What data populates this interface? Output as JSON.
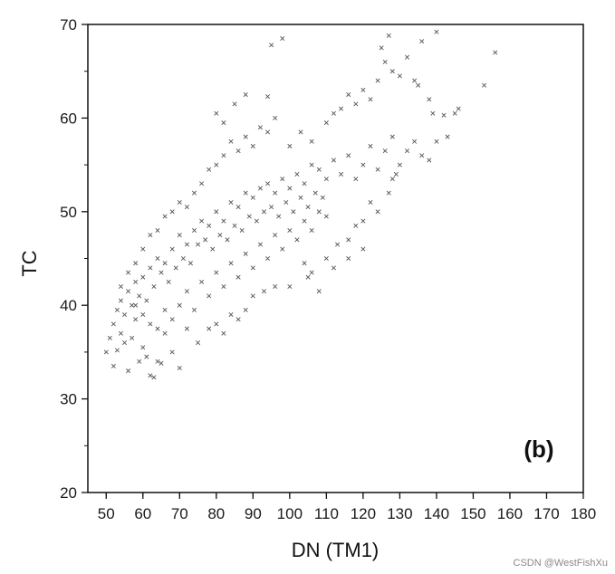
{
  "chart_data": {
    "type": "scatter",
    "xlabel": "DN (TM1)",
    "ylabel": "TC",
    "panel_label": "(b)",
    "xlim": [
      45,
      180
    ],
    "ylim": [
      20,
      70
    ],
    "xticks": [
      50,
      60,
      70,
      80,
      90,
      100,
      110,
      120,
      130,
      140,
      150,
      160,
      170,
      180
    ],
    "yticks": [
      20,
      30,
      40,
      50,
      60,
      70
    ],
    "marker": "x",
    "marker_color": "#555555",
    "grid": false,
    "points": [
      [
        50,
        35.0
      ],
      [
        51,
        36.5
      ],
      [
        52,
        33.5
      ],
      [
        53,
        35.2
      ],
      [
        54,
        37.0
      ],
      [
        55,
        36.0
      ],
      [
        56,
        33.0
      ],
      [
        57,
        36.5
      ],
      [
        58,
        38.5
      ],
      [
        59,
        34.0
      ],
      [
        60,
        35.5
      ],
      [
        61,
        34.5
      ],
      [
        62,
        32.5
      ],
      [
        63,
        32.3
      ],
      [
        64,
        34.0
      ],
      [
        65,
        33.8
      ],
      [
        66,
        37.0
      ],
      [
        68,
        35.0
      ],
      [
        70,
        33.3
      ],
      [
        72,
        37.5
      ],
      [
        75,
        36.0
      ],
      [
        78,
        37.5
      ],
      [
        80,
        38.0
      ],
      [
        82,
        37.0
      ],
      [
        84,
        39.0
      ],
      [
        86,
        38.5
      ],
      [
        88,
        39.5
      ],
      [
        90,
        41.0
      ],
      [
        93,
        41.5
      ],
      [
        96,
        42.0
      ],
      [
        100,
        42.0
      ],
      [
        105,
        43.0
      ],
      [
        108,
        41.5
      ],
      [
        112,
        44.0
      ],
      [
        116,
        45.0
      ],
      [
        120,
        46.0
      ],
      [
        52,
        38.0
      ],
      [
        53,
        39.5
      ],
      [
        54,
        40.5
      ],
      [
        55,
        39.0
      ],
      [
        56,
        41.5
      ],
      [
        57,
        40.0
      ],
      [
        58,
        42.5
      ],
      [
        59,
        41.0
      ],
      [
        60,
        43.0
      ],
      [
        61,
        40.5
      ],
      [
        62,
        44.0
      ],
      [
        63,
        42.0
      ],
      [
        64,
        45.0
      ],
      [
        65,
        43.5
      ],
      [
        66,
        44.5
      ],
      [
        67,
        42.5
      ],
      [
        68,
        46.0
      ],
      [
        69,
        44.0
      ],
      [
        70,
        47.5
      ],
      [
        71,
        45.0
      ],
      [
        72,
        46.5
      ],
      [
        73,
        44.5
      ],
      [
        74,
        48.0
      ],
      [
        75,
        46.5
      ],
      [
        76,
        49.0
      ],
      [
        77,
        47.0
      ],
      [
        78,
        48.5
      ],
      [
        79,
        46.0
      ],
      [
        80,
        50.0
      ],
      [
        81,
        47.5
      ],
      [
        82,
        49.0
      ],
      [
        83,
        47.0
      ],
      [
        84,
        51.0
      ],
      [
        85,
        48.5
      ],
      [
        86,
        50.5
      ],
      [
        87,
        48.0
      ],
      [
        88,
        52.0
      ],
      [
        89,
        49.5
      ],
      [
        90,
        51.5
      ],
      [
        91,
        49.0
      ],
      [
        92,
        52.5
      ],
      [
        93,
        50.0
      ],
      [
        94,
        53.0
      ],
      [
        95,
        50.5
      ],
      [
        96,
        52.0
      ],
      [
        97,
        49.5
      ],
      [
        98,
        53.5
      ],
      [
        99,
        51.0
      ],
      [
        100,
        52.5
      ],
      [
        101,
        50.0
      ],
      [
        102,
        54.0
      ],
      [
        103,
        51.5
      ],
      [
        104,
        53.0
      ],
      [
        105,
        50.5
      ],
      [
        106,
        55.0
      ],
      [
        107,
        52.0
      ],
      [
        108,
        54.5
      ],
      [
        109,
        51.5
      ],
      [
        110,
        53.5
      ],
      [
        112,
        55.5
      ],
      [
        114,
        54.0
      ],
      [
        116,
        56.0
      ],
      [
        118,
        53.5
      ],
      [
        120,
        55.0
      ],
      [
        122,
        57.0
      ],
      [
        124,
        54.5
      ],
      [
        126,
        56.5
      ],
      [
        128,
        58.0
      ],
      [
        58,
        44.5
      ],
      [
        60,
        46.0
      ],
      [
        62,
        47.5
      ],
      [
        64,
        48.0
      ],
      [
        66,
        49.5
      ],
      [
        68,
        50.0
      ],
      [
        70,
        51.0
      ],
      [
        72,
        50.5
      ],
      [
        74,
        52.0
      ],
      [
        76,
        53.0
      ],
      [
        78,
        54.5
      ],
      [
        80,
        55.0
      ],
      [
        82,
        56.0
      ],
      [
        84,
        57.5
      ],
      [
        86,
        56.5
      ],
      [
        88,
        58.0
      ],
      [
        90,
        57.0
      ],
      [
        92,
        59.0
      ],
      [
        94,
        58.5
      ],
      [
        96,
        60.0
      ],
      [
        80,
        60.5
      ],
      [
        82,
        59.5
      ],
      [
        85,
        61.5
      ],
      [
        88,
        62.5
      ],
      [
        94,
        62.3
      ],
      [
        95,
        67.8
      ],
      [
        98,
        68.5
      ],
      [
        100,
        57.0
      ],
      [
        103,
        58.5
      ],
      [
        106,
        57.5
      ],
      [
        110,
        59.5
      ],
      [
        112,
        60.5
      ],
      [
        114,
        61.0
      ],
      [
        116,
        62.5
      ],
      [
        118,
        61.5
      ],
      [
        120,
        63.0
      ],
      [
        122,
        62.0
      ],
      [
        124,
        64.0
      ],
      [
        125,
        67.5
      ],
      [
        126,
        66.0
      ],
      [
        127,
        68.8
      ],
      [
        128,
        65.0
      ],
      [
        130,
        64.5
      ],
      [
        132,
        66.5
      ],
      [
        134,
        64.0
      ],
      [
        135,
        63.5
      ],
      [
        136,
        68.2
      ],
      [
        138,
        62.0
      ],
      [
        139,
        60.5
      ],
      [
        140,
        69.2
      ],
      [
        142,
        60.3
      ],
      [
        143,
        58.0
      ],
      [
        145,
        60.5
      ],
      [
        146,
        61.0
      ],
      [
        153,
        63.5
      ],
      [
        156,
        67.0
      ],
      [
        128,
        53.5
      ],
      [
        130,
        55.0
      ],
      [
        132,
        56.5
      ],
      [
        134,
        57.5
      ],
      [
        136,
        56.0
      ],
      [
        138,
        55.5
      ],
      [
        140,
        57.5
      ],
      [
        127,
        52.0
      ],
      [
        129,
        54.0
      ],
      [
        124,
        50.0
      ],
      [
        122,
        51.0
      ],
      [
        120,
        49.0
      ],
      [
        118,
        48.5
      ],
      [
        116,
        47.0
      ],
      [
        113,
        46.5
      ],
      [
        110,
        45.0
      ],
      [
        106,
        43.5
      ],
      [
        104,
        44.5
      ],
      [
        54,
        42.0
      ],
      [
        56,
        43.5
      ],
      [
        58,
        40.0
      ],
      [
        60,
        39.0
      ],
      [
        62,
        38.0
      ],
      [
        64,
        37.5
      ],
      [
        66,
        39.5
      ],
      [
        68,
        38.5
      ],
      [
        70,
        40.0
      ],
      [
        72,
        41.5
      ],
      [
        74,
        39.5
      ],
      [
        76,
        42.5
      ],
      [
        78,
        41.0
      ],
      [
        80,
        43.5
      ],
      [
        82,
        42.0
      ],
      [
        84,
        44.5
      ],
      [
        86,
        43.0
      ],
      [
        88,
        45.5
      ],
      [
        90,
        44.0
      ],
      [
        92,
        46.5
      ],
      [
        94,
        45.0
      ],
      [
        96,
        47.5
      ],
      [
        98,
        46.0
      ],
      [
        100,
        48.0
      ],
      [
        102,
        47.0
      ],
      [
        104,
        49.0
      ],
      [
        106,
        48.0
      ],
      [
        108,
        50.0
      ],
      [
        110,
        49.5
      ]
    ]
  },
  "watermark": "CSDN @WestFishXu"
}
